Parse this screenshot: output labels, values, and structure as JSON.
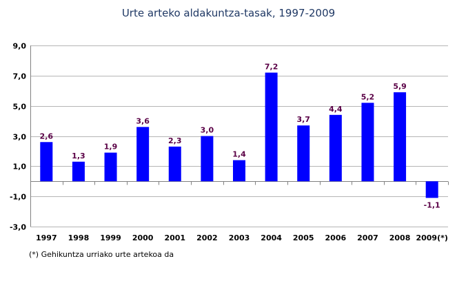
{
  "chart_data": {
    "type": "bar",
    "title": "Urte arteko aldakuntza-tasak, 1997-2009",
    "xlabel": "",
    "ylabel": "",
    "categories": [
      "1997",
      "1998",
      "1999",
      "2000",
      "2001",
      "2002",
      "2003",
      "2004",
      "2005",
      "2006",
      "2007",
      "2008",
      "2009(*)"
    ],
    "values": [
      2.6,
      1.3,
      1.9,
      3.6,
      2.3,
      3.0,
      1.4,
      7.2,
      3.7,
      4.4,
      5.2,
      5.9,
      -1.1
    ],
    "data_labels": [
      "2,6",
      "1,3",
      "1,9",
      "3,6",
      "2,3",
      "3,0",
      "1,4",
      "7,2",
      "3,7",
      "4,4",
      "5,2",
      "5,9",
      "-1,1"
    ],
    "ylim": [
      -3.0,
      9.0
    ],
    "yticks": [
      -3.0,
      -1.0,
      1.0,
      3.0,
      5.0,
      7.0,
      9.0
    ],
    "ytick_labels": [
      "-3,0",
      "-1,0",
      "1,0",
      "3,0",
      "5,0",
      "7,0",
      "9,0"
    ],
    "grid": true,
    "legend": "none",
    "bar_color": "#0000ff",
    "label_color": "#5a0046",
    "footnote": "(*) Gehikuntza urriako urte artekoa da"
  }
}
